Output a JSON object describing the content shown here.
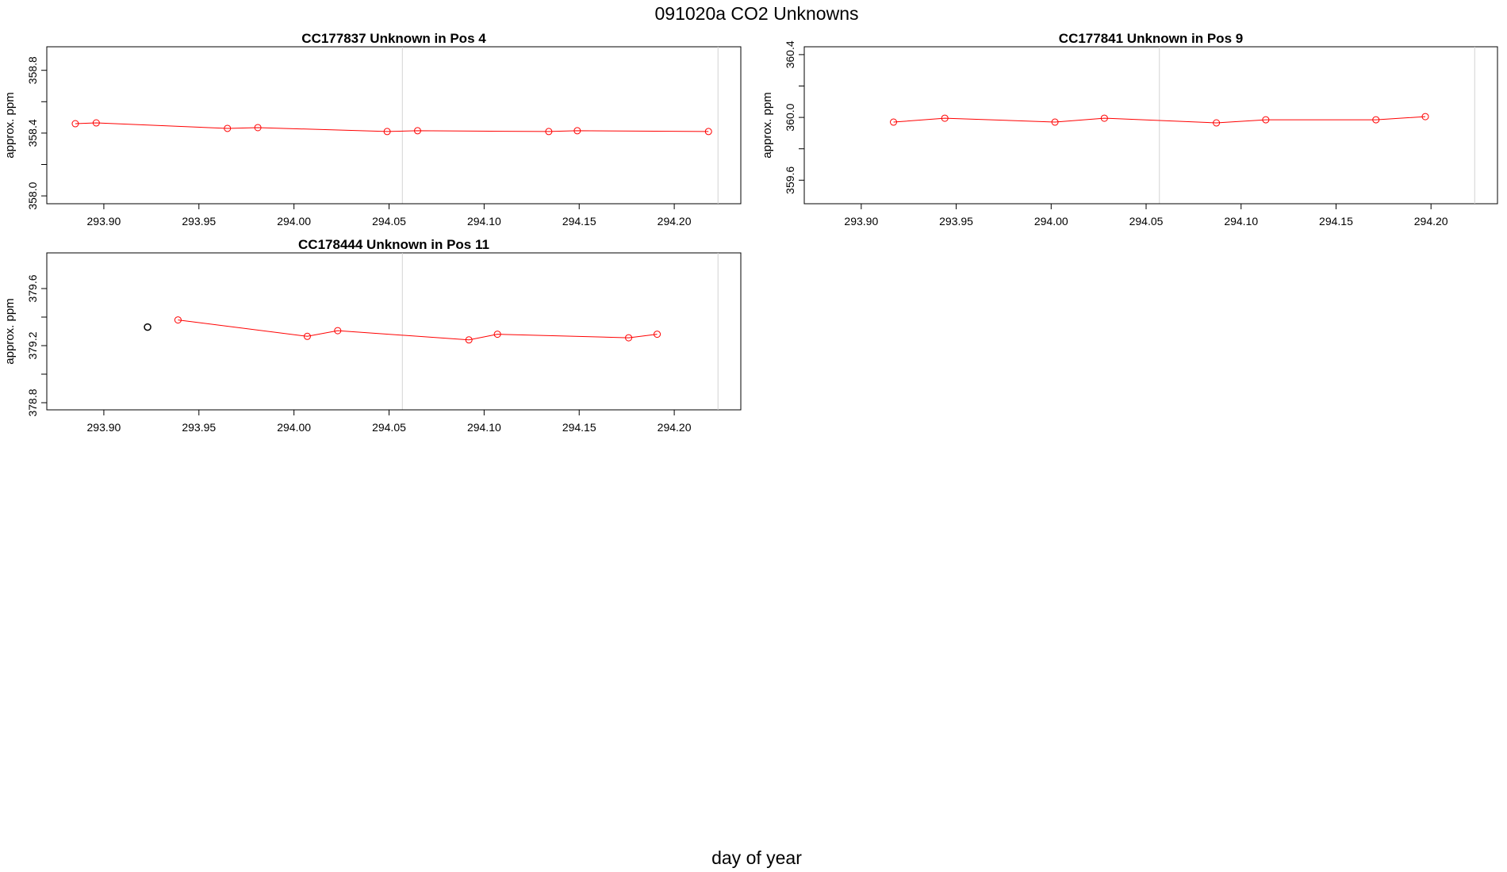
{
  "figure": {
    "title": "091020a  CO2 Unknowns",
    "xlabel": "day of year"
  },
  "chart_data": [
    {
      "type": "line",
      "title": "CC177837    Unknown in Pos 4",
      "xlabel": "",
      "ylabel": "approx. ppm",
      "xlim": [
        293.87,
        294.235
      ],
      "ylim": [
        357.95,
        358.95
      ],
      "xticks": [
        "293.90",
        "293.95",
        "294.00",
        "294.05",
        "294.10",
        "294.15",
        "294.20"
      ],
      "yticks": [
        "358.0",
        "358.4",
        "358.8"
      ],
      "vlines": [
        294.057,
        294.223
      ],
      "grid": false,
      "series": [
        {
          "color": "#ff0000",
          "x": [
            293.885,
            293.896,
            293.965,
            293.981,
            294.049,
            294.065,
            294.134,
            294.149,
            294.218
          ],
          "y": [
            358.46,
            358.465,
            358.43,
            358.435,
            358.41,
            358.415,
            358.41,
            358.415,
            358.41
          ]
        }
      ],
      "outliers": []
    },
    {
      "type": "line",
      "title": "CC177841    Unknown in Pos 9",
      "xlabel": "",
      "ylabel": "approx. ppm",
      "xlim": [
        293.87,
        294.235
      ],
      "ylim": [
        359.45,
        360.45
      ],
      "xticks": [
        "293.90",
        "293.95",
        "294.00",
        "294.05",
        "294.10",
        "294.15",
        "294.20"
      ],
      "yticks": [
        "359.6",
        "360.0",
        "360.4"
      ],
      "vlines": [
        294.057,
        294.223
      ],
      "grid": false,
      "series": [
        {
          "color": "#ff0000",
          "x": [
            293.917,
            293.944,
            294.002,
            294.028,
            294.087,
            294.113,
            294.171,
            294.197
          ],
          "y": [
            359.97,
            359.995,
            359.97,
            359.995,
            359.965,
            359.985,
            359.985,
            360.005
          ]
        }
      ],
      "outliers": []
    },
    {
      "type": "line",
      "title": "CC178444    Unknown in Pos 11",
      "xlabel": "",
      "ylabel": "approx. ppm",
      "xlim": [
        293.87,
        294.235
      ],
      "ylim": [
        378.75,
        379.85
      ],
      "xticks": [
        "293.90",
        "293.95",
        "294.00",
        "294.05",
        "294.10",
        "294.15",
        "294.20"
      ],
      "yticks": [
        "378.8",
        "379.2",
        "379.6"
      ],
      "vlines": [
        294.057,
        294.223
      ],
      "grid": false,
      "series": [
        {
          "color": "#ff0000",
          "x": [
            293.939,
            294.007,
            294.023,
            294.092,
            294.107,
            294.176,
            294.191
          ],
          "y": [
            379.38,
            379.265,
            379.305,
            379.24,
            379.28,
            379.255,
            379.28
          ]
        }
      ],
      "outliers": [
        {
          "color": "#000000",
          "x": 293.923,
          "y": 379.33
        }
      ]
    }
  ]
}
